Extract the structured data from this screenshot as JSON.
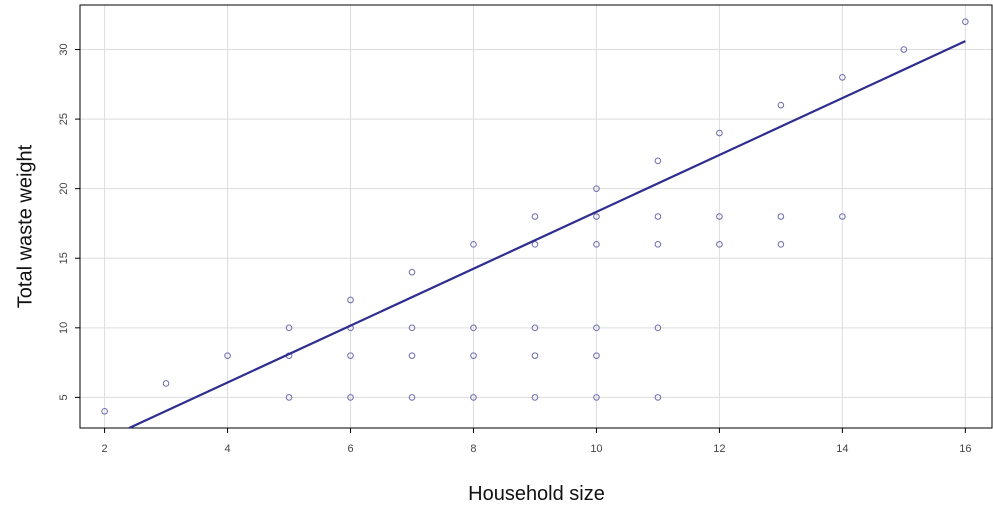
{
  "chart_data": {
    "type": "scatter",
    "title": "",
    "xlabel": "Household size",
    "ylabel": "Total waste weight",
    "xlim": [
      1.6,
      16.45
    ],
    "ylim": [
      2.8,
      33.2
    ],
    "xticks": [
      2,
      4,
      6,
      8,
      10,
      12,
      14,
      16
    ],
    "yticks": [
      5,
      10,
      15,
      20,
      25,
      30
    ],
    "grid": true,
    "legend": "none",
    "point_color": "#6b6bb0",
    "line_color": "#2e2e8f",
    "points": [
      {
        "x": 2,
        "y": 4
      },
      {
        "x": 3,
        "y": 6
      },
      {
        "x": 4,
        "y": 8
      },
      {
        "x": 5,
        "y": 5
      },
      {
        "x": 5,
        "y": 8
      },
      {
        "x": 5,
        "y": 10
      },
      {
        "x": 6,
        "y": 5
      },
      {
        "x": 6,
        "y": 8
      },
      {
        "x": 6,
        "y": 10
      },
      {
        "x": 6,
        "y": 12
      },
      {
        "x": 7,
        "y": 5
      },
      {
        "x": 7,
        "y": 8
      },
      {
        "x": 7,
        "y": 10
      },
      {
        "x": 7,
        "y": 14
      },
      {
        "x": 8,
        "y": 5
      },
      {
        "x": 8,
        "y": 8
      },
      {
        "x": 8,
        "y": 10
      },
      {
        "x": 8,
        "y": 16
      },
      {
        "x": 9,
        "y": 5
      },
      {
        "x": 9,
        "y": 8
      },
      {
        "x": 9,
        "y": 10
      },
      {
        "x": 9,
        "y": 16
      },
      {
        "x": 9,
        "y": 18
      },
      {
        "x": 10,
        "y": 5
      },
      {
        "x": 10,
        "y": 8
      },
      {
        "x": 10,
        "y": 10
      },
      {
        "x": 10,
        "y": 16
      },
      {
        "x": 10,
        "y": 18
      },
      {
        "x": 10,
        "y": 20
      },
      {
        "x": 11,
        "y": 5
      },
      {
        "x": 11,
        "y": 10
      },
      {
        "x": 11,
        "y": 16
      },
      {
        "x": 11,
        "y": 18
      },
      {
        "x": 11,
        "y": 22
      },
      {
        "x": 12,
        "y": 16
      },
      {
        "x": 12,
        "y": 18
      },
      {
        "x": 12,
        "y": 24
      },
      {
        "x": 13,
        "y": 16
      },
      {
        "x": 13,
        "y": 18
      },
      {
        "x": 13,
        "y": 26
      },
      {
        "x": 14,
        "y": 18
      },
      {
        "x": 14,
        "y": 28
      },
      {
        "x": 15,
        "y": 30
      },
      {
        "x": 16,
        "y": 32
      }
    ],
    "regression_line": {
      "x": [
        2.4,
        16.0
      ],
      "y": [
        2.8,
        30.6
      ]
    }
  }
}
